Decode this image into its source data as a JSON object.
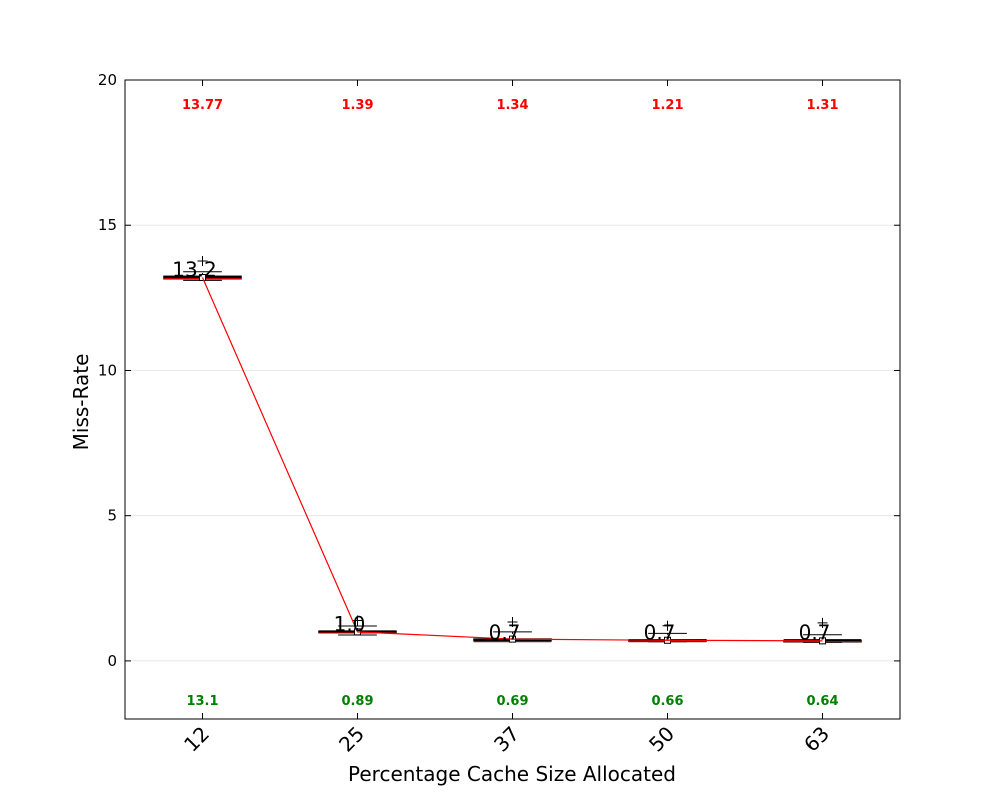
{
  "chart_data": {
    "type": "box",
    "xlabel": "Percentage Cache Size Allocated",
    "ylabel": "Miss-Rate",
    "ylim": [
      -2,
      20
    ],
    "yticks": [
      0,
      5,
      10,
      15,
      20
    ],
    "grid": "horizontal",
    "categories": [
      "12",
      "25",
      "37",
      "50",
      "63"
    ],
    "boxes": [
      {
        "category": "12",
        "median": 13.2,
        "q1": 13.15,
        "q3": 13.25,
        "whisker_low": 13.1,
        "whisker_high": 13.4,
        "outliers": [
          13.77
        ],
        "mean": 13.2
      },
      {
        "category": "25",
        "median": 1.0,
        "q1": 0.97,
        "q3": 1.03,
        "whisker_low": 0.89,
        "whisker_high": 1.2,
        "outliers": [
          1.39
        ],
        "mean": 1.0
      },
      {
        "category": "37",
        "median": 0.7,
        "q1": 0.69,
        "q3": 0.76,
        "whisker_low": 0.69,
        "whisker_high": 1.0,
        "outliers": [
          1.34
        ],
        "mean": 0.75
      },
      {
        "category": "50",
        "median": 0.7,
        "q1": 0.67,
        "q3": 0.73,
        "whisker_low": 0.66,
        "whisker_high": 0.95,
        "outliers": [
          1.21
        ],
        "mean": 0.71
      },
      {
        "category": "63",
        "median": 0.7,
        "q1": 0.65,
        "q3": 0.71,
        "whisker_low": 0.64,
        "whisker_high": 0.9,
        "outliers": [
          1.31
        ],
        "mean": 0.69
      }
    ],
    "median_labels": [
      "13.2",
      "1.0",
      "0.7",
      "0.7",
      "0.7"
    ],
    "max_labels": [
      "13.77",
      "1.39",
      "1.34",
      "1.21",
      "1.31"
    ],
    "min_labels": [
      "13.1",
      "0.89",
      "0.69",
      "0.66",
      "0.64"
    ],
    "mean_line": [
      13.2,
      1.0,
      0.75,
      0.71,
      0.69
    ],
    "colors": {
      "max_text": "#ff0000",
      "min_text": "#008000",
      "mean_line": "#ff0000",
      "box": "#000000"
    }
  }
}
